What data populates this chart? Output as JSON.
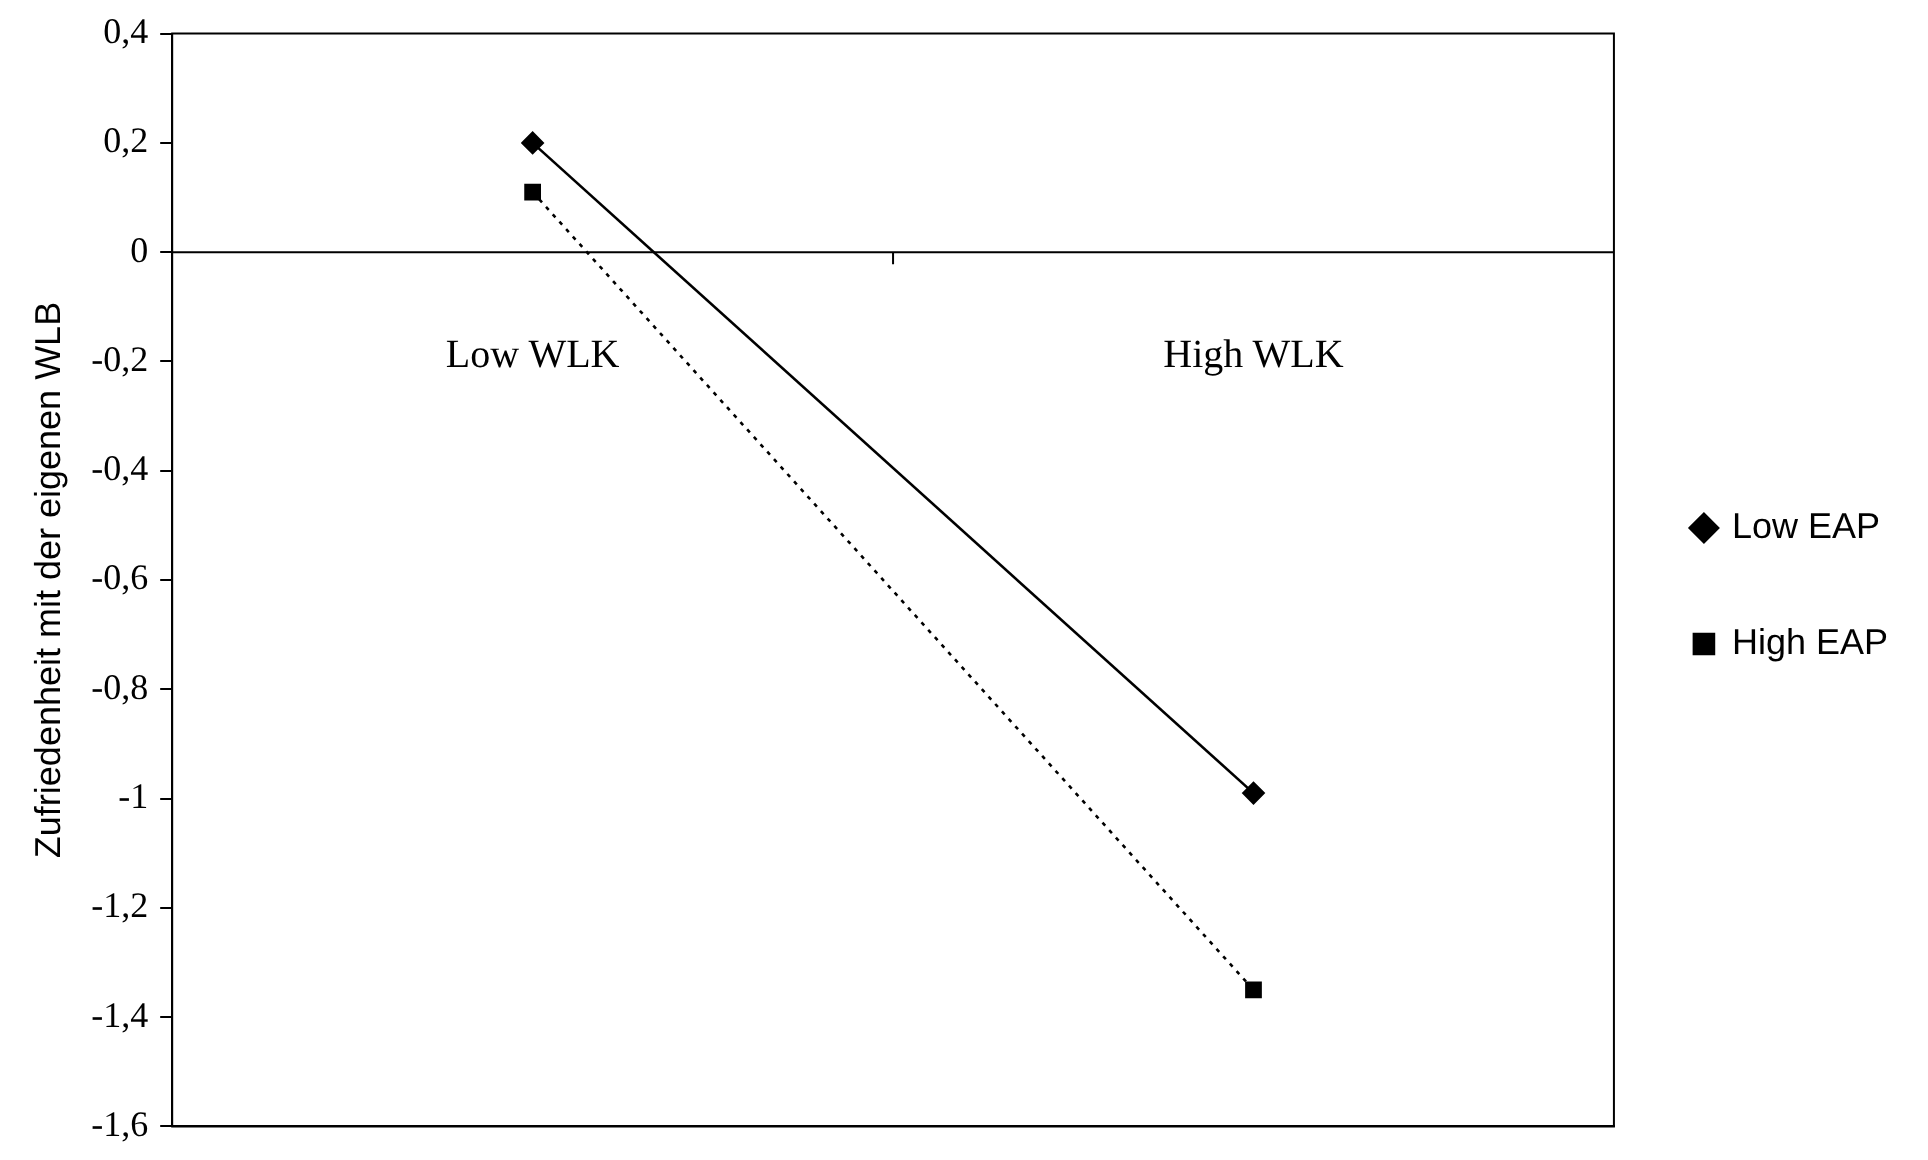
{
  "chart_data": {
    "type": "line",
    "ylabel": "Zufriedenheit mit der eigenen WLB",
    "categories": [
      "Low WLK",
      "High WLK"
    ],
    "series": [
      {
        "name": "Low EAP",
        "color": "#000000",
        "values": [
          0.2,
          -0.99
        ],
        "marker": "diamond",
        "line_style": "solid"
      },
      {
        "name": "High EAP",
        "color": "#000000",
        "values": [
          0.11,
          -1.35
        ],
        "marker": "square",
        "line_style": "dotted"
      }
    ],
    "ylim": [
      -1.6,
      0.4
    ],
    "yticks": [
      {
        "value": -1.6,
        "label": "-1,6"
      },
      {
        "value": -1.4,
        "label": "-1,4"
      },
      {
        "value": -1.2,
        "label": "-1,2"
      },
      -1,
      {
        "value": -0.8,
        "label": "-0,8"
      },
      {
        "value": -0.6,
        "label": "-0,6"
      },
      {
        "value": -0.4,
        "label": "-0,4"
      },
      {
        "value": -0.2,
        "label": "-0,2"
      },
      0,
      {
        "value": 0.2,
        "label": "0,2"
      },
      {
        "value": 0.4,
        "label": "0,4"
      }
    ],
    "grid": false,
    "legend": "right"
  }
}
